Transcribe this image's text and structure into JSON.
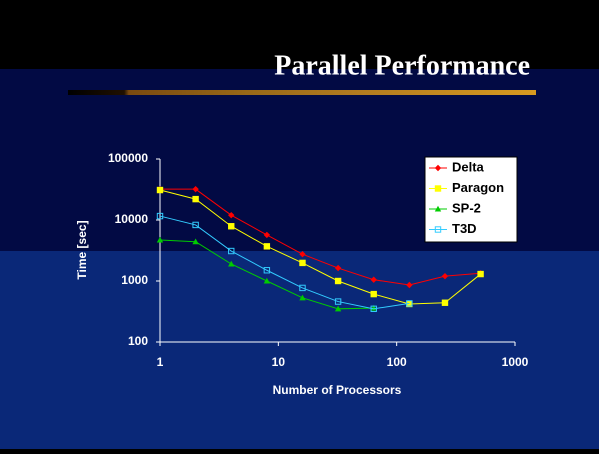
{
  "chart_data": {
    "type": "line",
    "title": "Parallel Performance",
    "x_label": "Number of Processors",
    "y_label": "Time [sec]",
    "x": [
      1,
      2,
      4,
      8,
      16,
      32,
      64,
      128,
      256,
      512
    ],
    "series": [
      {
        "name": "Delta",
        "color": "#ff0000",
        "marker": "diamond",
        "values": [
          32000,
          32000,
          12000,
          5700,
          2750,
          1630,
          1050,
          860,
          1200,
          1340
        ]
      },
      {
        "name": "Paragon",
        "color": "#ffff00",
        "marker": "square",
        "values": [
          31000,
          22000,
          7900,
          3700,
          1980,
          1000,
          610,
          420,
          440,
          1300
        ]
      },
      {
        "name": "SP-2",
        "color": "#00cc00",
        "marker": "triangle",
        "values": [
          4700,
          4400,
          1900,
          1000,
          530,
          350,
          360,
          null,
          null,
          null
        ]
      },
      {
        "name": "T3D",
        "color": "#33ccff",
        "marker": "open-square",
        "values": [
          11600,
          8300,
          3100,
          1500,
          770,
          460,
          350,
          430,
          null,
          null
        ]
      }
    ],
    "x_scale": "log",
    "y_scale": "log",
    "xlim": [
      1,
      1000
    ],
    "xticks": [
      1,
      10,
      100,
      1000
    ],
    "ylim": [
      100,
      100000
    ],
    "yticks": [
      100,
      1000,
      10000,
      100000
    ],
    "grid": false,
    "legend": "upper right"
  }
}
